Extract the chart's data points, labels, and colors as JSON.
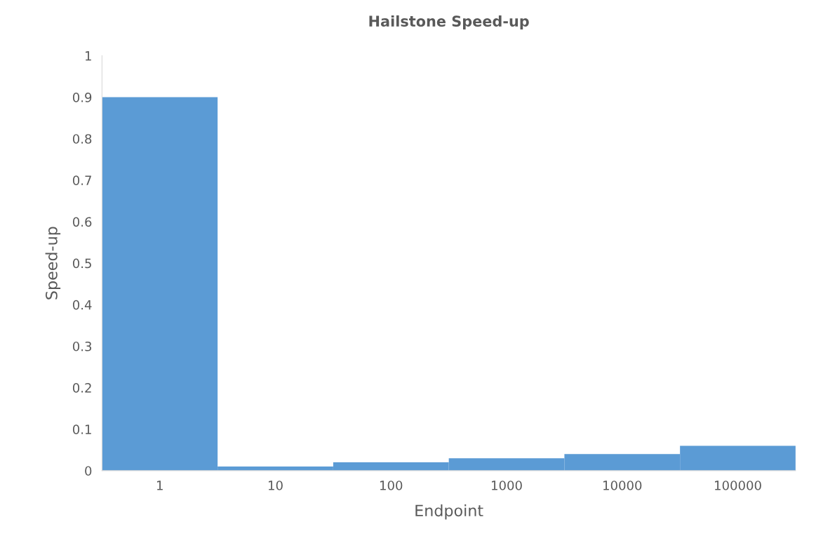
{
  "chart_data": {
    "type": "bar",
    "title": "Hailstone Speed-up",
    "xlabel": "Endpoint",
    "ylabel": "Speed-up",
    "categories": [
      "1",
      "10",
      "100",
      "1000",
      "10000",
      "100000"
    ],
    "values": [
      0.9,
      0.01,
      0.02,
      0.03,
      0.04,
      0.06
    ],
    "color": "#5b9bd5",
    "ylim": [
      0,
      1
    ],
    "yticks": [
      0,
      0.1,
      0.2,
      0.3,
      0.4,
      0.5,
      0.6,
      0.7,
      0.8,
      0.9,
      1
    ],
    "grid": false,
    "legend": false
  }
}
